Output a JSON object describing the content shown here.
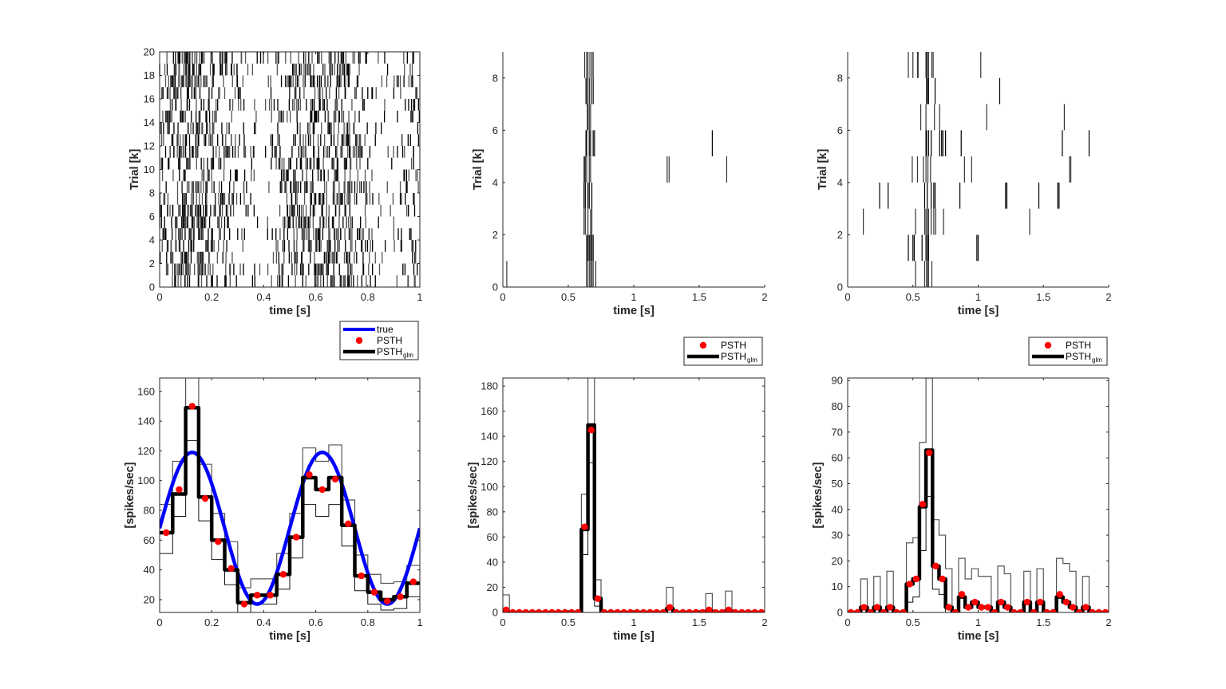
{
  "colors": {
    "true_curve": "#0000ff",
    "psth": "#ff0000",
    "psth_glm": "#000000",
    "ci": "#555555",
    "raster": "#000000",
    "axis": "#262626"
  },
  "chart_data": [
    {
      "id": "raster-1",
      "type": "raster",
      "xlabel": "time [s]",
      "ylabel": "Trial [k]",
      "xlim": [
        0,
        1
      ],
      "ylim": [
        0,
        20
      ],
      "xticks": [
        "0",
        "0.2",
        "0.4",
        "0.6",
        "0.8",
        "1"
      ],
      "xtick_values": [
        0,
        0.2,
        0.4,
        0.6,
        0.8,
        1
      ],
      "yticks": [
        "0",
        "2",
        "4",
        "6",
        "8",
        "10",
        "12",
        "14",
        "16",
        "18",
        "20"
      ],
      "ytick_values": [
        0,
        2,
        4,
        6,
        8,
        10,
        12,
        14,
        16,
        18,
        20
      ],
      "box": true,
      "n_trials": 20,
      "rate_model": "sinusoid-peaks-at-0.125-and-0.625"
    },
    {
      "id": "raster-2",
      "type": "raster",
      "xlabel": "time [s]",
      "ylabel": "Trial [k]",
      "xlim": [
        0,
        2
      ],
      "ylim": [
        0,
        9
      ],
      "xticks": [
        "0",
        "0.5",
        "1",
        "1.5",
        "2"
      ],
      "xtick_values": [
        0,
        0.5,
        1,
        1.5,
        2
      ],
      "yticks": [
        "0",
        "2",
        "4",
        "6",
        "8"
      ],
      "ytick_values": [
        0,
        2,
        4,
        6,
        8
      ],
      "box": false,
      "spikes": [
        [
          0.03,
          0.64,
          0.645,
          0.66,
          0.67,
          0.68,
          0.69,
          0.71
        ],
        [
          0.64,
          0.65,
          0.66,
          0.67,
          0.68,
          0.69
        ],
        [
          0.62,
          0.63,
          0.65,
          0.67,
          0.68
        ],
        [
          0.62,
          0.63,
          0.65,
          0.66,
          0.68
        ],
        [
          0.62,
          0.625,
          0.63,
          0.64,
          0.66,
          0.67,
          1.255,
          1.27,
          1.71
        ],
        [
          0.635,
          0.64,
          0.66,
          0.67,
          0.69,
          0.7,
          1.6
        ],
        [
          0.645,
          0.65,
          0.66,
          0.67
        ],
        [
          0.635,
          0.645,
          0.66,
          0.675,
          0.69
        ],
        [
          0.625,
          0.64,
          0.65,
          0.665,
          0.68,
          0.69
        ]
      ]
    },
    {
      "id": "raster-3",
      "type": "raster",
      "xlabel": "time [s]",
      "ylabel": "Trial [k]",
      "xlim": [
        0,
        2
      ],
      "ylim": [
        0,
        9
      ],
      "xticks": [
        "0",
        "0.5",
        "1",
        "1.5",
        "2"
      ],
      "xtick_values": [
        0,
        0.5,
        1,
        1.5,
        2
      ],
      "yticks": [
        "0",
        "2",
        "4",
        "6",
        "8"
      ],
      "ytick_values": [
        0,
        2,
        4,
        6,
        8
      ],
      "box": false,
      "spikes": [
        [
          0.52,
          0.59,
          0.605,
          0.61,
          0.62,
          0.645
        ],
        [
          0.465,
          0.5,
          0.51,
          0.57,
          0.6,
          0.61,
          0.62,
          0.99,
          1.0
        ],
        [
          0.12,
          0.52,
          0.59,
          0.6,
          0.61,
          0.62,
          0.64,
          0.66,
          0.675,
          0.735,
          1.395
        ],
        [
          0.245,
          0.31,
          0.59,
          0.61,
          0.64,
          0.66,
          0.67,
          0.86,
          1.21,
          1.22,
          1.465,
          1.61,
          1.62
        ],
        [
          0.495,
          0.535,
          0.58,
          0.6,
          0.615,
          0.635,
          0.895,
          0.95,
          1.7,
          1.71
        ],
        [
          0.6,
          0.605,
          0.62,
          0.64,
          0.705,
          0.72,
          0.73,
          0.75,
          0.87,
          1.645,
          1.85
        ],
        [
          0.56,
          0.6,
          0.665,
          0.705,
          1.065,
          1.66
        ],
        [
          0.605,
          0.61,
          0.62,
          0.67,
          1.165
        ],
        [
          0.465,
          0.5,
          0.535,
          0.54,
          0.6,
          0.605,
          0.61,
          0.62,
          0.645,
          0.655,
          1.02
        ]
      ]
    },
    {
      "id": "psth-1",
      "type": "line",
      "xlabel": "time [s]",
      "ylabel": "[spikes/sec]",
      "xlim": [
        0,
        1
      ],
      "ylim": [
        11.4,
        169
      ],
      "xticks": [
        "0",
        "0.2",
        "0.4",
        "0.6",
        "0.8",
        "1"
      ],
      "xtick_values": [
        0,
        0.2,
        0.4,
        0.6,
        0.8,
        1
      ],
      "yticks": [
        "20",
        "40",
        "60",
        "80",
        "100",
        "120",
        "140",
        "160"
      ],
      "ytick_values": [
        20,
        40,
        60,
        80,
        100,
        120,
        140,
        160
      ],
      "box": true,
      "legend": {
        "position": "above-right",
        "entries": [
          "true",
          "PSTH",
          "PSTH",
          "glm"
        ]
      },
      "bin_width": 0.05,
      "true_curve": {
        "baseline": 68,
        "amplitude": 51,
        "frequency_hz": 2,
        "phase_peak_s": 0.125
      },
      "series": [
        {
          "name": "PSTH",
          "x": [
            0.025,
            0.075,
            0.125,
            0.175,
            0.225,
            0.275,
            0.325,
            0.375,
            0.425,
            0.475,
            0.525,
            0.575,
            0.625,
            0.675,
            0.725,
            0.775,
            0.825,
            0.875,
            0.925,
            0.975
          ],
          "values": [
            65,
            94,
            150,
            88,
            59,
            41,
            17,
            23,
            23,
            37,
            62,
            104,
            94,
            101,
            71,
            36,
            25,
            19,
            22,
            32
          ]
        },
        {
          "name": "PSTH_glm",
          "values": [
            65,
            91,
            149,
            89,
            60,
            40,
            18,
            23,
            23,
            37,
            62,
            102,
            94,
            102,
            70,
            36,
            25,
            20,
            22,
            31
          ]
        },
        {
          "name": "CI_upper",
          "values": [
            84,
            113,
            175,
            111,
            78,
            59,
            28,
            34,
            34,
            51,
            78,
            122,
            113,
            124,
            87,
            50,
            37,
            31,
            32,
            43
          ]
        },
        {
          "name": "CI_lower",
          "values": [
            51,
            76,
            127,
            73,
            47,
            30,
            11,
            17,
            17,
            27,
            48,
            84,
            76,
            84,
            56,
            26,
            17,
            13,
            14,
            22
          ]
        }
      ]
    },
    {
      "id": "psth-2",
      "type": "line",
      "xlabel": "time [s]",
      "ylabel": "[spikes/sec]",
      "xlim": [
        0,
        2
      ],
      "ylim": [
        0,
        186.4
      ],
      "xticks": [
        "0",
        "0.5",
        "1",
        "1.5",
        "2"
      ],
      "xtick_values": [
        0,
        0.5,
        1,
        1.5,
        2
      ],
      "yticks": [
        "0",
        "20",
        "40",
        "60",
        "80",
        "100",
        "120",
        "140",
        "160",
        "180"
      ],
      "ytick_values": [
        0,
        20,
        40,
        60,
        80,
        100,
        120,
        140,
        160,
        180
      ],
      "box": true,
      "legend": {
        "position": "above-right",
        "entries": [
          "PSTH",
          "PSTH",
          "glm"
        ]
      },
      "bin_width": 0.05,
      "series": [
        {
          "name": "PSTH",
          "values": [
            2,
            0,
            0,
            0,
            0,
            0,
            0,
            0,
            0,
            0,
            0,
            0,
            68,
            145,
            11,
            0,
            0,
            0,
            0,
            0,
            0,
            0,
            0,
            0,
            0,
            4,
            0,
            0,
            0,
            0,
            0,
            2,
            0,
            0,
            2,
            0,
            0,
            0,
            0,
            0
          ]
        },
        {
          "name": "PSTH_glm",
          "values": [
            0,
            0,
            0,
            0,
            0,
            0,
            0,
            0,
            0,
            0,
            0,
            0,
            66,
            149,
            11,
            0,
            0,
            0,
            0,
            0,
            0,
            0,
            0,
            0,
            0,
            3,
            0,
            0,
            0,
            0,
            0,
            1,
            0,
            0,
            1,
            0,
            0,
            0,
            0,
            0
          ]
        },
        {
          "name": "CI_upper",
          "values": [
            14,
            0,
            0,
            0,
            0,
            0,
            0,
            0,
            0,
            0,
            0,
            0,
            94,
            187,
            26,
            0,
            0,
            0,
            0,
            0,
            0,
            0,
            0,
            0,
            0,
            20,
            0,
            0,
            0,
            0,
            0,
            15,
            0,
            0,
            17,
            0,
            0,
            0,
            0,
            0
          ]
        },
        {
          "name": "CI_lower",
          "values": [
            0,
            0,
            0,
            0,
            0,
            0,
            0,
            0,
            0,
            0,
            0,
            0,
            46,
            119,
            5,
            0,
            0,
            0,
            0,
            0,
            0,
            0,
            0,
            0,
            0,
            0,
            0,
            0,
            0,
            0,
            0,
            0,
            0,
            0,
            0,
            0,
            0,
            0,
            0,
            0
          ]
        }
      ]
    },
    {
      "id": "psth-3",
      "type": "line",
      "xlabel": "time [s]",
      "ylabel": "[spikes/sec]",
      "xlim": [
        0,
        2
      ],
      "ylim": [
        0,
        91
      ],
      "xticks": [
        "0",
        "0.5",
        "1",
        "1.5",
        "2"
      ],
      "xtick_values": [
        0,
        0.5,
        1,
        1.5,
        2
      ],
      "yticks": [
        "0",
        "10",
        "20",
        "30",
        "40",
        "50",
        "60",
        "70",
        "80",
        "90"
      ],
      "ytick_values": [
        0,
        10,
        20,
        30,
        40,
        50,
        60,
        70,
        80,
        90
      ],
      "box": true,
      "legend": {
        "position": "above-right",
        "entries": [
          "PSTH",
          "PSTH",
          "glm"
        ]
      },
      "bin_width": 0.05,
      "series": [
        {
          "name": "PSTH",
          "values": [
            0,
            0,
            2,
            0,
            2,
            0,
            2,
            0,
            0,
            11,
            13,
            42,
            62,
            18,
            13,
            2,
            0,
            7,
            2,
            4,
            2,
            2,
            0,
            4,
            2,
            0,
            0,
            4,
            0,
            4,
            0,
            0,
            7,
            4,
            2,
            0,
            2,
            0,
            0,
            0
          ]
        },
        {
          "name": "PSTH_glm",
          "values": [
            0,
            0,
            2,
            0,
            2,
            0,
            2,
            0,
            0,
            11,
            13,
            41,
            63,
            18,
            13,
            2,
            0,
            6,
            2,
            4,
            2,
            2,
            0,
            4,
            2,
            0,
            0,
            4,
            0,
            4,
            0,
            0,
            6,
            4,
            2,
            0,
            2,
            0,
            0,
            0
          ]
        },
        {
          "name": "CI_upper",
          "values": [
            0,
            0,
            13,
            0,
            14,
            0,
            16,
            0,
            0,
            27,
            29,
            66,
            91,
            36,
            30,
            17,
            0,
            21,
            13,
            17,
            14,
            14,
            0,
            18,
            15,
            0,
            0,
            16,
            0,
            17,
            0,
            0,
            21,
            19,
            16,
            0,
            14,
            0,
            0,
            0
          ]
        },
        {
          "name": "CI_lower",
          "values": [
            0,
            0,
            0,
            0,
            0,
            0,
            0,
            0,
            0,
            4,
            6,
            24,
            45,
            9,
            7,
            0,
            0,
            0,
            0,
            0,
            0,
            0,
            0,
            0,
            0,
            0,
            0,
            0,
            0,
            0,
            0,
            0,
            0,
            0,
            0,
            0,
            0,
            0,
            0,
            0
          ]
        }
      ]
    }
  ]
}
